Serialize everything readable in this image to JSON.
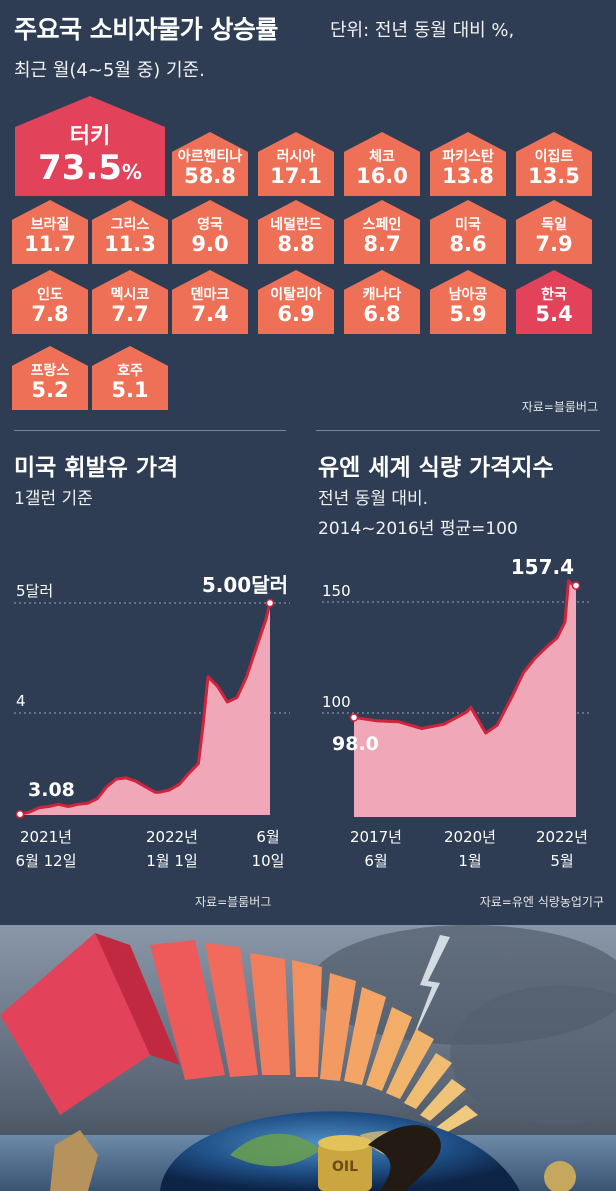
{
  "header": {
    "title": "주요국 소비자물가 상승률",
    "unit": "단위: 전년 동월 대비 %,",
    "basis": "최근 월(4~5월 중) 기준."
  },
  "countries": [
    {
      "name": "터키",
      "value": "73.5",
      "unit": "%"
    },
    {
      "name": "아르헨티나",
      "value": "58.8"
    },
    {
      "name": "러시아",
      "value": "17.1"
    },
    {
      "name": "체코",
      "value": "16.0"
    },
    {
      "name": "파키스탄",
      "value": "13.8"
    },
    {
      "name": "이집트",
      "value": "13.5"
    },
    {
      "name": "브라질",
      "value": "11.7"
    },
    {
      "name": "그리스",
      "value": "11.3"
    },
    {
      "name": "영국",
      "value": "9.0"
    },
    {
      "name": "네덜란드",
      "value": "8.8"
    },
    {
      "name": "스페인",
      "value": "8.7"
    },
    {
      "name": "미국",
      "value": "8.6"
    },
    {
      "name": "독일",
      "value": "7.9"
    },
    {
      "name": "인도",
      "value": "7.8"
    },
    {
      "name": "멕시코",
      "value": "7.7"
    },
    {
      "name": "덴마크",
      "value": "7.4"
    },
    {
      "name": "이탈리아",
      "value": "6.9"
    },
    {
      "name": "캐나다",
      "value": "6.8"
    },
    {
      "name": "남아공",
      "value": "5.9"
    },
    {
      "name": "한국",
      "value": "5.4"
    },
    {
      "name": "프랑스",
      "value": "5.2"
    },
    {
      "name": "호주",
      "value": "5.1"
    }
  ],
  "colors": {
    "background": "#2e3d54",
    "house_normal": "#ee7157",
    "house_highlight": "#e2425a",
    "chart_fill": "#f0a8b8",
    "chart_line": "#d0233c"
  },
  "cpi_source": "자료=블룸버그",
  "oil": {
    "title": "미국 휘발유 가격",
    "subtitle": "1갤런 기준",
    "source": "자료=블룸버그",
    "y_ticks": [
      {
        "value": 4,
        "label": "4"
      },
      {
        "value": 5,
        "label": "5달러"
      }
    ],
    "x_labels": [
      {
        "line1": "2021년",
        "line2": "6월 12일"
      },
      {
        "line1": "2022년",
        "line2": "1월 1일"
      },
      {
        "line1": "6월",
        "line2": "10일"
      }
    ],
    "start_label": "3.08",
    "end_label": "5.00달러"
  },
  "food": {
    "title": "유엔 세계 식량 가격지수",
    "subtitle1": "전년 동월 대비.",
    "subtitle2": "2014~2016년 평균=100",
    "source": "자료=유엔 식량농업기구",
    "y_ticks": [
      {
        "value": 100,
        "label": "100"
      },
      {
        "value": 150,
        "label": "150"
      }
    ],
    "x_labels": [
      {
        "line1": "2017년",
        "line2": "6월"
      },
      {
        "line1": "2020년",
        "line2": "1월"
      },
      {
        "line1": "2022년",
        "line2": "5월"
      }
    ],
    "start_label": "98.0",
    "end_label": "157.4"
  },
  "chart_data": [
    {
      "type": "area",
      "title": "미국 휘발유 가격",
      "subtitle": "1갤런 기준",
      "ylabel": "",
      "y_ticks": [
        4,
        5
      ],
      "x_tick_labels": [
        "2021년 6월 12일",
        "2022년 1월 1일",
        "6월 10일"
      ],
      "x": [
        "2021-06-12",
        "2021-06-26",
        "2021-07-10",
        "2021-07-24",
        "2021-08-07",
        "2021-08-21",
        "2021-09-04",
        "2021-09-18",
        "2021-10-02",
        "2021-10-16",
        "2021-10-30",
        "2021-11-13",
        "2021-11-27",
        "2021-12-11",
        "2021-12-25",
        "2022-01-01",
        "2022-01-15",
        "2022-01-29",
        "2022-02-12",
        "2022-02-26",
        "2022-03-05",
        "2022-03-12",
        "2022-03-26",
        "2022-04-09",
        "2022-04-23",
        "2022-05-07",
        "2022-05-21",
        "2022-06-04",
        "2022-06-10"
      ],
      "values": [
        3.08,
        3.1,
        3.14,
        3.15,
        3.17,
        3.15,
        3.17,
        3.18,
        3.22,
        3.33,
        3.4,
        3.41,
        3.38,
        3.33,
        3.28,
        3.28,
        3.3,
        3.35,
        3.45,
        3.54,
        3.9,
        4.33,
        4.24,
        4.1,
        4.14,
        4.33,
        4.59,
        4.85,
        5.0
      ],
      "start_label": "3.08",
      "end_label": "5.00달러"
    },
    {
      "type": "area",
      "title": "유엔 세계 식량 가격지수",
      "subtitle": "전년 동월 대비. 2014~2016년 평균=100",
      "ylabel": "",
      "y_ticks": [
        100,
        150
      ],
      "x_tick_labels": [
        "2017년 6월",
        "2020년 1월",
        "2022년 5월"
      ],
      "x": [
        "2017-06",
        "2017-12",
        "2018-06",
        "2018-12",
        "2019-06",
        "2019-12",
        "2020-01",
        "2020-05",
        "2020-08",
        "2020-12",
        "2021-03",
        "2021-06",
        "2021-09",
        "2021-12",
        "2022-02",
        "2022-03",
        "2022-04",
        "2022-05"
      ],
      "values": [
        98.0,
        96.5,
        96.0,
        93.0,
        95.0,
        100.5,
        102.5,
        91.0,
        94.5,
        107.5,
        118.0,
        124.5,
        129.5,
        134.0,
        141.0,
        159.5,
        158.0,
        157.4
      ],
      "start_label": "98.0",
      "end_label": "157.4"
    }
  ]
}
